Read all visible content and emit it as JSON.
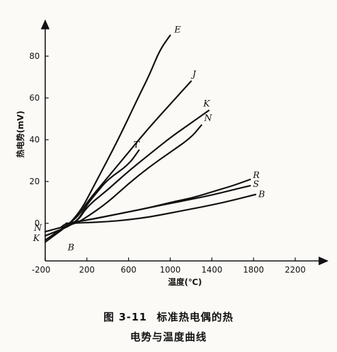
{
  "chart_data": {
    "type": "line",
    "title": "",
    "xlabel": "温度(℃)",
    "ylabel": "热电势(mV)",
    "xlim": [
      -200,
      2400
    ],
    "ylim": [
      -18,
      92
    ],
    "x_ticks": [
      {
        "value": -200,
        "label": "-200"
      },
      {
        "value": 200,
        "label": "200"
      },
      {
        "value": 600,
        "label": "600"
      },
      {
        "value": 1000,
        "label": "1000"
      },
      {
        "value": 1400,
        "label": "1400"
      },
      {
        "value": 1800,
        "label": "1800"
      },
      {
        "value": 2200,
        "label": "2200"
      }
    ],
    "y_ticks": [
      {
        "value": 0,
        "label": "0"
      },
      {
        "value": 20,
        "label": "20"
      },
      {
        "value": 40,
        "label": "40"
      },
      {
        "value": 60,
        "label": "60"
      },
      {
        "value": 80,
        "label": "80"
      }
    ],
    "grid": false,
    "series": [
      {
        "name": "E",
        "x": [
          -200,
          100,
          300,
          500,
          700,
          800,
          900,
          1000
        ],
        "y": [
          -9,
          2,
          21,
          40,
          61,
          71,
          83,
          90
        ]
      },
      {
        "name": "J",
        "x": [
          -200,
          100,
          200,
          400,
          600,
          800,
          1000,
          1200
        ],
        "y": [
          -8,
          2,
          10,
          22,
          34,
          46,
          57,
          68
        ]
      },
      {
        "name": "T",
        "x": [
          -200,
          100,
          200,
          300,
          400,
          600,
          700
        ],
        "y": [
          -6,
          0,
          9,
          15,
          21,
          28,
          35
        ]
      },
      {
        "name": "K",
        "x": [
          -200,
          100,
          200,
          400,
          600,
          800,
          1000,
          1200,
          1370
        ],
        "y": [
          -6,
          0,
          8,
          16,
          25,
          33,
          41,
          48,
          54
        ]
      },
      {
        "name": "N",
        "x": [
          -200,
          100,
          200,
          400,
          600,
          800,
          1000,
          1200,
          1300
        ],
        "y": [
          -4,
          0,
          3,
          10,
          19,
          27,
          34,
          41,
          47
        ]
      },
      {
        "name": "R",
        "x": [
          -50,
          0,
          200,
          400,
          600,
          800,
          1000,
          1200,
          1400,
          1600,
          1768
        ],
        "y": [
          -2,
          0,
          1.5,
          3.5,
          5.5,
          7.5,
          10,
          12,
          15,
          18,
          21
        ]
      },
      {
        "name": "S",
        "x": [
          -50,
          0,
          200,
          400,
          600,
          800,
          1000,
          1200,
          1400,
          1600,
          1768
        ],
        "y": [
          -2,
          0,
          1.5,
          3.5,
          5.5,
          7.5,
          9.5,
          11.5,
          13.5,
          16,
          18
        ]
      },
      {
        "name": "B",
        "x": [
          0,
          200,
          400,
          600,
          800,
          1000,
          1200,
          1400,
          1600,
          1820
        ],
        "y": [
          0,
          0.3,
          0.8,
          1.7,
          3,
          4.9,
          6.8,
          8.8,
          11,
          13.8
        ]
      }
    ],
    "annotations": []
  },
  "caption": {
    "line1_number": "图 3-11",
    "line1_text": "标准热电偶的热",
    "line2_text": "电势与温度曲线"
  },
  "colors": {
    "ink": "#111111",
    "paper": "#fbfaf6"
  }
}
